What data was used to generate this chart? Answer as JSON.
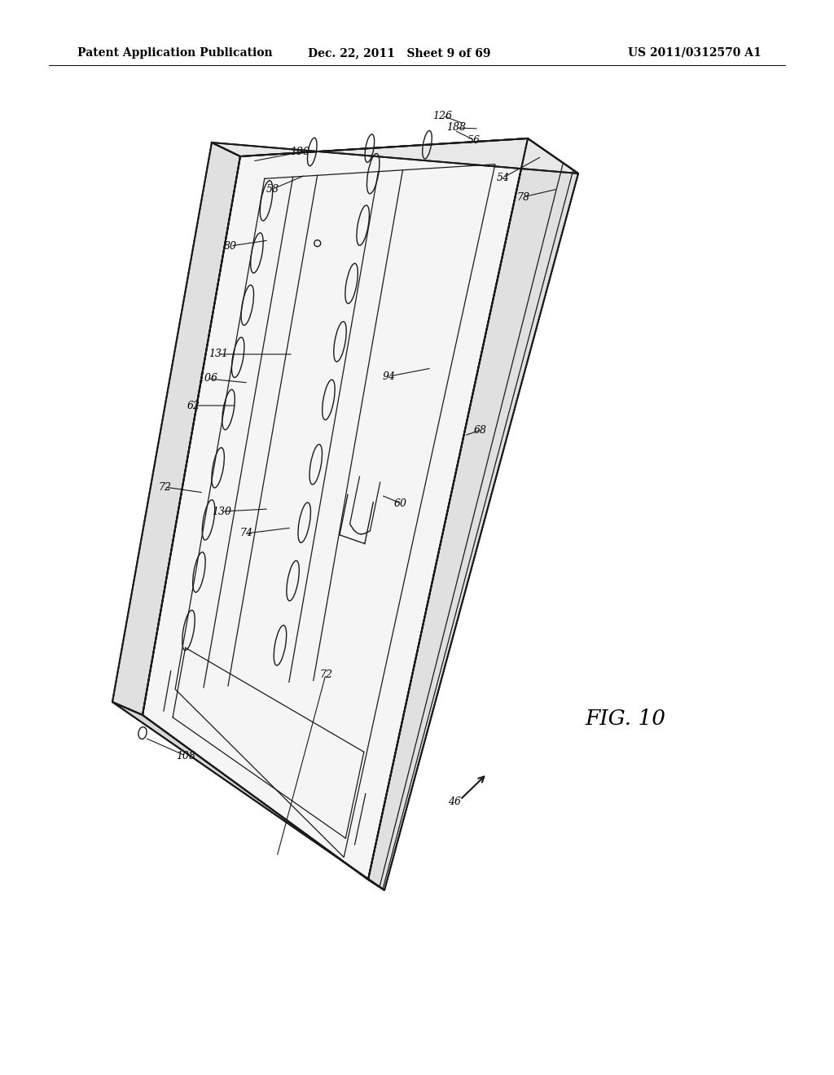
{
  "bg_color": "#ffffff",
  "line_color": "#1a1a1a",
  "header_left": "Patent Application Publication",
  "header_mid": "Dec. 22, 2011   Sheet 9 of 69",
  "header_right": "US 2011/0312570 A1"
}
